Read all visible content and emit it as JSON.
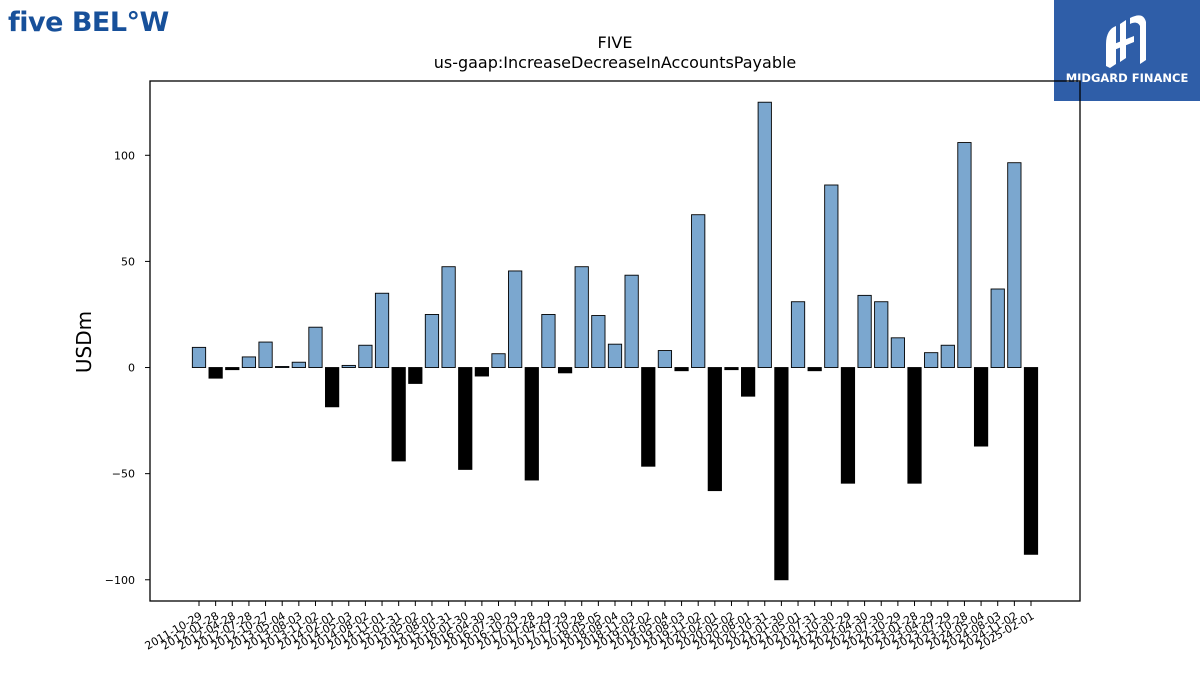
{
  "logos": {
    "five_below": "five BEL°W",
    "midgard": "MIDGARD FINANCE"
  },
  "colors": {
    "positive_bar": "#7ba7cf",
    "negative_bar": "#000000",
    "five_below_brand": "#17509a",
    "midgard_bg": "#2f5ea8"
  },
  "chart_data": {
    "type": "bar",
    "title": "FIVE",
    "subtitle": "us-gaap:IncreaseDecreaseInAccountsPayable",
    "xlabel": "",
    "ylabel": "USDm",
    "ylim": [
      -110,
      135
    ],
    "yticks": [
      -100,
      -50,
      0,
      50,
      100
    ],
    "ytick_labels": [
      "−100",
      "−50",
      "0",
      "50",
      "100"
    ],
    "grid": false,
    "categories": [
      "2011-10-29",
      "2012-01-28",
      "2012-04-28",
      "2012-07-28",
      "2012-10-27",
      "2013-05-04",
      "2013-08-03",
      "2013-11-02",
      "2014-02-01",
      "2014-05-03",
      "2014-08-02",
      "2014-11-01",
      "2015-01-31",
      "2015-05-02",
      "2015-08-01",
      "2015-10-31",
      "2016-01-30",
      "2016-04-30",
      "2016-07-30",
      "2016-10-29",
      "2017-01-28",
      "2017-04-29",
      "2017-07-29",
      "2017-10-28",
      "2018-05-05",
      "2018-08-04",
      "2018-11-03",
      "2019-02-02",
      "2019-05-04",
      "2019-08-03",
      "2019-11-02",
      "2020-02-01",
      "2020-05-02",
      "2020-08-01",
      "2020-10-31",
      "2021-01-30",
      "2021-05-01",
      "2021-07-31",
      "2021-10-30",
      "2022-01-29",
      "2022-04-30",
      "2022-07-30",
      "2022-10-29",
      "2023-01-28",
      "2023-04-29",
      "2023-07-29",
      "2023-10-28",
      "2024-05-04",
      "2024-08-03",
      "2024-11-02",
      "2025-02-01"
    ],
    "values": [
      9.5,
      -5,
      -1,
      5,
      12,
      0.5,
      2.5,
      19,
      -18.5,
      1,
      10.5,
      35,
      -44,
      -7.5,
      25,
      47.5,
      -48,
      -4,
      6.5,
      45.5,
      -53,
      25,
      -2.5,
      47.5,
      24.5,
      11,
      43.5,
      -46.5,
      8,
      -1.5,
      72,
      -58,
      -1,
      -13.5,
      125,
      -100,
      31,
      -1.5,
      86,
      -54.5,
      34,
      31,
      14,
      -54.5,
      7,
      10.5,
      106,
      -37,
      37,
      96.5,
      -88
    ],
    "negative_style": "black fill",
    "positive_style": "light blue fill with black edge"
  }
}
